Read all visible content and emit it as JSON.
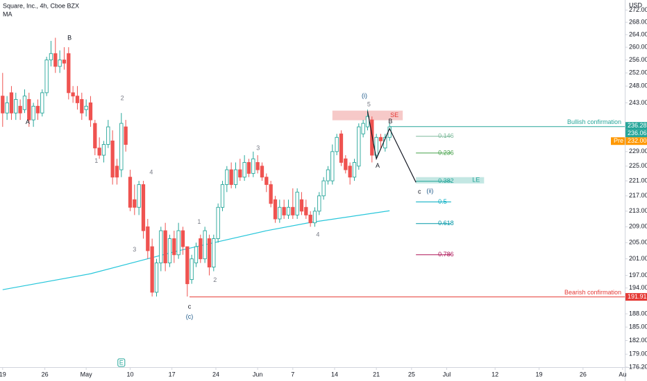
{
  "chart_data": {
    "type": "candlestick",
    "title": "Square, Inc., 4h, Cboe BZX",
    "currency": "USD",
    "log_scale": true,
    "up_color": "#26a69a",
    "down_color": "#ef5350",
    "ylim": [
      176.2,
      275.36
    ],
    "yticks": [
      {
        "value": 272,
        "label": "272.00"
      },
      {
        "value": 268,
        "label": "268.00"
      },
      {
        "value": 264,
        "label": "264.00"
      },
      {
        "value": 260,
        "label": "260.00"
      },
      {
        "value": 256,
        "label": "256.00"
      },
      {
        "value": 252,
        "label": "252.00"
      },
      {
        "value": 248,
        "label": "248.00"
      },
      {
        "value": 243,
        "label": "243.00"
      },
      {
        "value": 229,
        "label": "229.00"
      },
      {
        "value": 225,
        "label": "225.00"
      },
      {
        "value": 221,
        "label": "221.00"
      },
      {
        "value": 217,
        "label": "217.00"
      },
      {
        "value": 213,
        "label": "213.00"
      },
      {
        "value": 209,
        "label": "209.00"
      },
      {
        "value": 205,
        "label": "205.00"
      },
      {
        "value": 201,
        "label": "201.00"
      },
      {
        "value": 197,
        "label": "197.00"
      },
      {
        "value": 194,
        "label": "194.00"
      },
      {
        "value": 188,
        "label": "188.00"
      },
      {
        "value": 185,
        "label": "185.00"
      },
      {
        "value": 182,
        "label": "182.00"
      },
      {
        "value": 179,
        "label": "179.00"
      },
      {
        "value": 176.2,
        "label": "176.20"
      }
    ],
    "xlim": [
      -0.6,
      141.5
    ],
    "xticks": [
      {
        "value": 0,
        "label": "19"
      },
      {
        "value": 9.6,
        "label": "26"
      },
      {
        "value": 19,
        "label": "May"
      },
      {
        "value": 29,
        "label": "10"
      },
      {
        "value": 38.5,
        "label": "17"
      },
      {
        "value": 48.5,
        "label": "24"
      },
      {
        "value": 58,
        "label": "Jun"
      },
      {
        "value": 66,
        "label": "7"
      },
      {
        "value": 75.5,
        "label": "14"
      },
      {
        "value": 85,
        "label": "21"
      },
      {
        "value": 93,
        "label": "25"
      },
      {
        "value": 101,
        "label": "Jul"
      },
      {
        "value": 112,
        "label": "12"
      },
      {
        "value": 122,
        "label": "19"
      },
      {
        "value": 132,
        "label": "26"
      },
      {
        "value": 141,
        "label": "Au"
      }
    ],
    "open": [
      245,
      240,
      246,
      240,
      242,
      241,
      244,
      238,
      242,
      240,
      246,
      256,
      258,
      254,
      256,
      258,
      246,
      245,
      244,
      241,
      243,
      237,
      230,
      228,
      231,
      232,
      225,
      224,
      236,
      222,
      216,
      214,
      220,
      209,
      204,
      193,
      200,
      208,
      200,
      206,
      202,
      208,
      204,
      196,
      200,
      206,
      201,
      206,
      199,
      206,
      214,
      220,
      224,
      220,
      224,
      222,
      226,
      223,
      226,
      225,
      222,
      220,
      216,
      211,
      214,
      212,
      214,
      212,
      216,
      214,
      212,
      210,
      213,
      217,
      221,
      221,
      229,
      234,
      227,
      225,
      222,
      225,
      234,
      236,
      238,
      228,
      233,
      230,
      233
    ],
    "high": [
      252,
      245,
      248,
      246,
      244,
      247,
      246,
      243,
      244,
      247,
      257,
      262,
      263,
      259,
      260,
      260,
      248,
      248,
      246,
      244,
      245,
      238,
      233,
      232,
      238,
      235,
      227,
      240,
      238,
      224,
      220,
      221,
      221,
      211,
      206,
      201,
      209,
      210,
      207,
      208,
      210,
      209,
      204,
      202,
      205,
      207,
      209,
      207,
      207,
      215,
      221,
      225,
      226,
      226,
      227,
      228,
      227,
      229,
      228,
      226,
      223,
      221,
      217,
      216,
      216,
      216,
      219,
      219,
      218,
      216,
      213,
      214,
      218,
      222,
      225,
      231,
      234,
      235,
      228,
      226,
      227,
      237,
      238,
      241,
      239,
      234,
      234,
      234,
      237
    ],
    "low": [
      236,
      238,
      238,
      238,
      238,
      240,
      236,
      236,
      238,
      239,
      245,
      254,
      252,
      252,
      253,
      244,
      243,
      241,
      238,
      239,
      236,
      228,
      227,
      226,
      230,
      220,
      220,
      222,
      229,
      213,
      212,
      212,
      206,
      201,
      192,
      192,
      198,
      198,
      199,
      200,
      201,
      202,
      192,
      195,
      199,
      200,
      200,
      197,
      198,
      205,
      213,
      218,
      219,
      219,
      221,
      221,
      222,
      222,
      223,
      221,
      218,
      214,
      210,
      210,
      211,
      211,
      211,
      211,
      212,
      211,
      209,
      209,
      212,
      216,
      220,
      220,
      228,
      225,
      223,
      220,
      221,
      224,
      233,
      235,
      226,
      227,
      230,
      229,
      232
    ],
    "close": [
      240,
      243,
      240,
      244,
      240,
      245,
      238,
      242,
      240,
      246,
      256,
      258,
      254,
      256,
      255,
      246,
      245,
      243,
      240,
      242,
      238,
      230,
      228,
      231,
      236,
      222,
      222,
      237,
      231,
      214,
      214,
      220,
      208,
      203,
      193,
      200,
      208,
      200,
      206,
      202,
      208,
      204,
      195,
      201,
      204,
      201,
      208,
      199,
      206,
      214,
      220,
      224,
      220,
      224,
      222,
      226,
      223,
      227,
      224,
      222,
      220,
      215,
      211,
      214,
      212,
      214,
      212,
      218,
      213,
      212,
      210,
      213,
      217,
      221,
      224,
      229,
      233,
      226,
      224,
      222,
      226,
      236,
      237,
      239,
      228,
      233,
      232,
      233,
      236
    ],
    "ma": {
      "name": "MA",
      "color": "#26c6da",
      "x": [
        0,
        20,
        40,
        60,
        70,
        88
      ],
      "values": [
        193.6,
        197.4,
        203.0,
        208.0,
        210.1,
        213.1
      ]
    },
    "levels": [
      {
        "name": "Bullish confirmation",
        "value": 236.06,
        "x0": 88,
        "color": "#26a69a"
      },
      {
        "name": "Bearish confirmation",
        "value": 191.91,
        "x0": 42.5,
        "color": "#e53935"
      }
    ],
    "fib_x": [
      94,
      102
    ],
    "fib": [
      {
        "label": "0.146",
        "value": 233.3,
        "color": "#7cb99a"
      },
      {
        "label": "0.236",
        "value": 228.6,
        "color": "#43a047"
      },
      {
        "label": "0.382",
        "value": 220.9,
        "color": "#26a69a"
      },
      {
        "label": "0.5",
        "value": 215.4,
        "color": "#00acc1"
      },
      {
        "label": "0.618",
        "value": 209.8,
        "color": "#0097a7"
      },
      {
        "label": "0.786",
        "value": 202.0,
        "color": "#ad1457"
      }
    ],
    "boxes": [
      {
        "label": "SE",
        "x": [
          75,
          91
        ],
        "price": [
          237.9,
          240.7
        ],
        "fill": "#f6c9c8",
        "text_color": "#e53935"
      },
      {
        "label": "LE",
        "x": [
          94,
          109.5
        ],
        "price": [
          220.3,
          222.0
        ],
        "fill": "#c3e7e3",
        "text_color": "#26a69a"
      }
    ],
    "projection": {
      "color": "#131722",
      "x": [
        83,
        85,
        88,
        94
      ],
      "values": [
        240.5,
        227,
        235.5,
        220.6
      ]
    },
    "annotations": [
      {
        "text": "B",
        "x": 15.2,
        "price": 262.9,
        "color": "#131722"
      },
      {
        "text": "A",
        "x": 5.7,
        "price": 237.3,
        "color": "#131722"
      },
      {
        "text": "2",
        "x": 27.2,
        "price": 244.3,
        "color": "#787b86"
      },
      {
        "text": "1",
        "x": 21.3,
        "price": 226.4,
        "color": "#787b86"
      },
      {
        "text": "4",
        "x": 33.8,
        "price": 223.2,
        "color": "#787b86"
      },
      {
        "text": "3",
        "x": 30,
        "price": 203.2,
        "color": "#787b86"
      },
      {
        "text": "1",
        "x": 44.7,
        "price": 210.2,
        "color": "#787b86"
      },
      {
        "text": "2",
        "x": 48.3,
        "price": 195.8,
        "color": "#787b86"
      },
      {
        "text": "3",
        "x": 58.1,
        "price": 229.9,
        "color": "#787b86"
      },
      {
        "text": "4",
        "x": 71.7,
        "price": 206.9,
        "color": "#787b86"
      },
      {
        "text": "(i)",
        "x": 82.3,
        "price": 245.0,
        "color": "#1e5a8a"
      },
      {
        "text": "5",
        "x": 83.3,
        "price": 242.4,
        "color": "#787b86"
      },
      {
        "text": "B",
        "x": 88.2,
        "price": 237.5,
        "color": "#131722"
      },
      {
        "text": "A",
        "x": 85.3,
        "price": 225.0,
        "color": "#131722"
      },
      {
        "text": "c",
        "x": 94.8,
        "price": 218.0,
        "color": "#131722"
      },
      {
        "text": "(ii)",
        "x": 97.2,
        "price": 218.2,
        "color": "#1e5a8a"
      },
      {
        "text": "c",
        "x": 42.5,
        "price": 189.6,
        "color": "#131722"
      },
      {
        "text": "(c)",
        "x": 42.5,
        "price": 187.3,
        "color": "#1e5a8a"
      }
    ],
    "events": [
      {
        "label": "E",
        "x": 27
      }
    ],
    "price_labels": [
      {
        "value": 236.28,
        "label": "236.28",
        "color": "#26a69a"
      },
      {
        "value": 236.06,
        "label": "236.06",
        "color": "#26a69a"
      },
      {
        "value": 232.0,
        "label": "232.00",
        "color": "#ff9800",
        "tag": "Pre"
      },
      {
        "value": 191.91,
        "label": "191.91",
        "color": "#e53935"
      }
    ]
  }
}
